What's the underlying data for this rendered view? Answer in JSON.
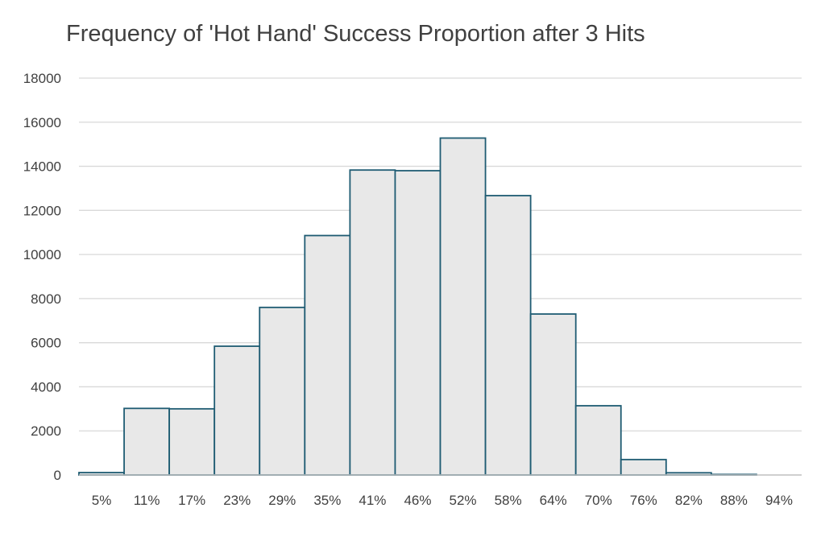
{
  "chart_data": {
    "type": "bar",
    "title": "Frequency of 'Hot Hand' Success Proportion after 3 Hits",
    "xlabel": "",
    "ylabel": "",
    "categories": [
      "5%",
      "11%",
      "17%",
      "23%",
      "29%",
      "35%",
      "41%",
      "46%",
      "52%",
      "58%",
      "64%",
      "70%",
      "76%",
      "82%",
      "88%",
      "94%"
    ],
    "values": [
      110,
      3020,
      3000,
      5840,
      7600,
      10860,
      13830,
      13800,
      15280,
      12670,
      7300,
      3140,
      700,
      100,
      25,
      0
    ],
    "ylim": [
      0,
      18000
    ],
    "yticks": [
      "0",
      "2000",
      "4000",
      "6000",
      "8000",
      "10000",
      "12000",
      "14000",
      "16000",
      "18000"
    ],
    "grid": "horizontal",
    "legend": "none",
    "colors": {
      "bar_fill": "#e8e8e8",
      "bar_stroke": "#1f5c73",
      "grid": "#d9d9d9",
      "axis": "#bfbfbf",
      "text": "#404040"
    }
  }
}
